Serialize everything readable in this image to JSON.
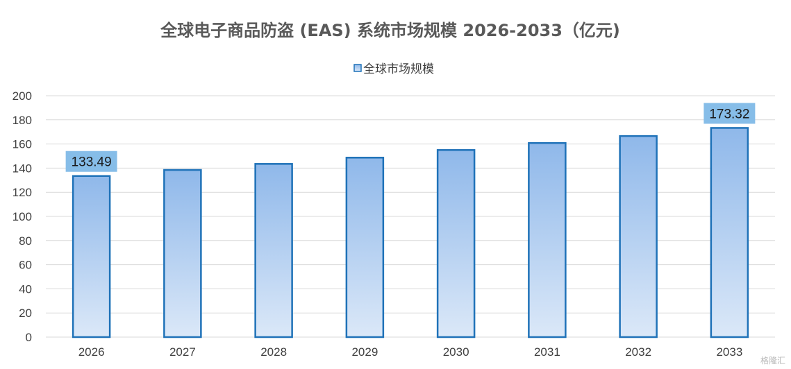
{
  "chart_data": {
    "type": "bar",
    "title": "全球电子商品防盗 (EAS) 系统市场规模 2026-2033（亿元)",
    "categories": [
      "2026",
      "2027",
      "2028",
      "2029",
      "2030",
      "2031",
      "2032",
      "2033"
    ],
    "series": [
      {
        "name": "全球市场规模",
        "values": [
          133.49,
          138.5,
          143.5,
          148.7,
          155.0,
          160.8,
          166.6,
          173.32
        ]
      }
    ],
    "data_labels": [
      {
        "category": "2026",
        "text": "133.49"
      },
      {
        "category": "2033",
        "text": "173.32"
      }
    ],
    "ylim": [
      0,
      200
    ],
    "yticks": [
      0,
      20,
      40,
      60,
      80,
      100,
      120,
      140,
      160,
      180,
      200
    ],
    "grid": true,
    "legend_position": "top",
    "colors": {
      "bar_top": "#8fb8ea",
      "bar_bottom": "#dbe8f8",
      "bar_border": "#1f72b8",
      "label_bg": "#86bde8",
      "grid": "#d9d9d9",
      "title": "#595959",
      "text": "#404040"
    }
  },
  "watermark": "格隆汇"
}
